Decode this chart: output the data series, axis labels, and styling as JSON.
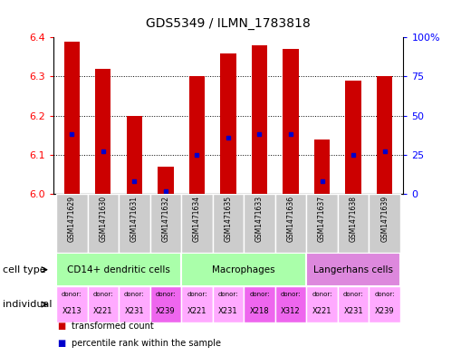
{
  "title": "GDS5349 / ILMN_1783818",
  "samples": [
    "GSM1471629",
    "GSM1471630",
    "GSM1471631",
    "GSM1471632",
    "GSM1471634",
    "GSM1471635",
    "GSM1471633",
    "GSM1471636",
    "GSM1471637",
    "GSM1471638",
    "GSM1471639"
  ],
  "transformed_count": [
    6.39,
    6.32,
    6.2,
    6.07,
    6.3,
    6.36,
    6.38,
    6.37,
    6.14,
    6.29,
    6.3
  ],
  "percentile_rank": [
    38,
    27,
    8,
    2,
    25,
    36,
    38,
    38,
    8,
    25,
    27
  ],
  "ylim_left": [
    6.0,
    6.4
  ],
  "ylim_right": [
    0,
    100
  ],
  "yticks_left": [
    6.0,
    6.1,
    6.2,
    6.3,
    6.4
  ],
  "yticks_right": [
    0,
    25,
    50,
    75,
    100
  ],
  "ytick_right_labels": [
    "0",
    "25",
    "50",
    "75",
    "100%"
  ],
  "grid_ticks": [
    6.1,
    6.2,
    6.3
  ],
  "cell_type_groups": [
    {
      "label": "CD14+ dendritic cells",
      "start": 0,
      "end": 4,
      "color": "#aaffaa"
    },
    {
      "label": "Macrophages",
      "start": 4,
      "end": 8,
      "color": "#aaffaa"
    },
    {
      "label": "Langerhans cells",
      "start": 8,
      "end": 11,
      "color": "#dd88dd"
    }
  ],
  "individual_labels": [
    {
      "donor": "X213",
      "color": "#ffaaff"
    },
    {
      "donor": "X221",
      "color": "#ffaaff"
    },
    {
      "donor": "X231",
      "color": "#ffaaff"
    },
    {
      "donor": "X239",
      "color": "#ee66ee"
    },
    {
      "donor": "X221",
      "color": "#ffaaff"
    },
    {
      "donor": "X231",
      "color": "#ffaaff"
    },
    {
      "donor": "X218",
      "color": "#ee66ee"
    },
    {
      "donor": "X312",
      "color": "#ee66ee"
    },
    {
      "donor": "X221",
      "color": "#ffaaff"
    },
    {
      "donor": "X231",
      "color": "#ffaaff"
    },
    {
      "donor": "X239",
      "color": "#ffaaff"
    }
  ],
  "bar_color": "#cc0000",
  "dot_color": "#0000cc",
  "base_value": 6.0,
  "bar_width": 0.5,
  "legend_items": [
    {
      "color": "#cc0000",
      "label": "transformed count"
    },
    {
      "color": "#0000cc",
      "label": "percentile rank within the sample"
    }
  ],
  "cell_type_row_label": "cell type",
  "individual_row_label": "individual",
  "sample_bg_color": "#cccccc",
  "background_color": "#ffffff"
}
